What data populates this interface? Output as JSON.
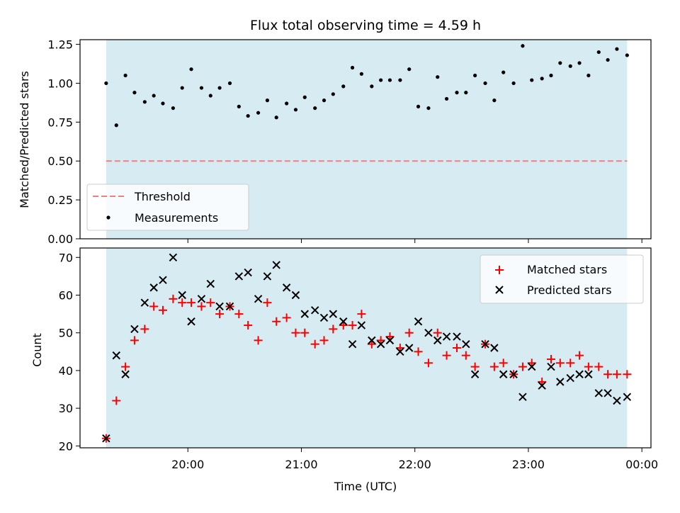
{
  "figure_title": "Flux total observing time = 4.59 h",
  "colors": {
    "shade": "#add8e6",
    "threshold": "#f08080",
    "matched": "#ff0000",
    "predicted": "#000000",
    "measurement": "#000000"
  },
  "chart_data": [
    {
      "type": "scatter",
      "title": "Flux total observing time = 4.59 h",
      "xlabel": "",
      "ylabel": "Matched/Predicted stars",
      "ylim": [
        0,
        1.28
      ],
      "x_range_hours": [
        19.05,
        24.08
      ],
      "yticks": [
        "0.00",
        "0.25",
        "0.50",
        "0.75",
        "1.00",
        "1.25"
      ],
      "grid": false,
      "legend_placement": "lower-left",
      "shaded_span_hours": [
        19.28,
        23.87
      ],
      "threshold": {
        "name": "Threshold",
        "value": 0.5,
        "style": "dashed"
      },
      "series": [
        {
          "name": "Measurements",
          "x": [
            19.28,
            19.37,
            19.45,
            19.53,
            19.62,
            19.7,
            19.78,
            19.87,
            19.95,
            20.03,
            20.12,
            20.2,
            20.28,
            20.37,
            20.45,
            20.53,
            20.62,
            20.7,
            20.78,
            20.87,
            20.95,
            21.03,
            21.12,
            21.2,
            21.28,
            21.37,
            21.45,
            21.53,
            21.62,
            21.7,
            21.78,
            21.87,
            21.95,
            22.03,
            22.12,
            22.2,
            22.28,
            22.37,
            22.45,
            22.53,
            22.62,
            22.7,
            22.78,
            22.87,
            22.95,
            23.03,
            23.12,
            23.2,
            23.28,
            23.37,
            23.45,
            23.53,
            23.62,
            23.7,
            23.78,
            23.87
          ],
          "values": [
            1.0,
            0.73,
            1.05,
            0.94,
            0.88,
            0.92,
            0.87,
            0.84,
            0.97,
            1.09,
            0.97,
            0.92,
            0.97,
            1.0,
            0.85,
            0.79,
            0.81,
            0.89,
            0.78,
            0.87,
            0.83,
            0.91,
            0.84,
            0.89,
            0.93,
            0.98,
            1.1,
            1.06,
            0.98,
            1.02,
            1.02,
            1.02,
            1.09,
            0.85,
            0.84,
            1.04,
            0.9,
            0.94,
            0.94,
            1.05,
            1.0,
            0.89,
            1.07,
            1.0,
            1.24,
            1.02,
            1.03,
            1.05,
            1.13,
            1.11,
            1.13,
            1.05,
            1.2,
            1.15,
            1.22,
            1.18
          ]
        }
      ],
      "legend": [
        "Threshold",
        "Measurements"
      ]
    },
    {
      "type": "scatter",
      "title": "",
      "xlabel": "Time (UTC)",
      "ylabel": "Count",
      "ylim": [
        19.5,
        72.5
      ],
      "x_range_hours": [
        19.05,
        24.08
      ],
      "yticks": [
        "20",
        "30",
        "40",
        "50",
        "60",
        "70"
      ],
      "xticks": [
        "20:00",
        "21:00",
        "22:00",
        "23:00",
        "00:00"
      ],
      "grid": false,
      "legend_placement": "upper-right",
      "shaded_span_hours": [
        19.28,
        23.87
      ],
      "series": [
        {
          "name": "Matched stars",
          "marker": "plus",
          "x": [
            19.28,
            19.37,
            19.45,
            19.53,
            19.62,
            19.7,
            19.78,
            19.87,
            19.95,
            20.03,
            20.12,
            20.2,
            20.28,
            20.37,
            20.45,
            20.53,
            20.62,
            20.7,
            20.78,
            20.87,
            20.95,
            21.03,
            21.12,
            21.2,
            21.28,
            21.37,
            21.45,
            21.53,
            21.62,
            21.7,
            21.78,
            21.87,
            21.95,
            22.03,
            22.12,
            22.2,
            22.28,
            22.37,
            22.45,
            22.53,
            22.62,
            22.7,
            22.78,
            22.87,
            22.95,
            23.03,
            23.12,
            23.2,
            23.28,
            23.37,
            23.45,
            23.53,
            23.62,
            23.7,
            23.78,
            23.87
          ],
          "values": [
            22,
            32,
            41,
            48,
            51,
            57,
            56,
            59,
            58,
            58,
            57,
            58,
            55,
            57,
            55,
            52,
            48,
            58,
            53,
            54,
            50,
            50,
            47,
            48,
            51,
            52,
            52,
            55,
            47,
            48,
            49,
            46,
            50,
            45,
            42,
            50,
            44,
            46,
            44,
            41,
            47,
            41,
            42,
            39,
            41,
            42,
            37,
            43,
            42,
            42,
            44,
            41,
            41,
            39,
            39,
            39
          ]
        },
        {
          "name": "Predicted stars",
          "marker": "x",
          "x": [
            19.28,
            19.37,
            19.45,
            19.53,
            19.62,
            19.7,
            19.78,
            19.87,
            19.95,
            20.03,
            20.12,
            20.2,
            20.28,
            20.37,
            20.45,
            20.53,
            20.62,
            20.7,
            20.78,
            20.87,
            20.95,
            21.03,
            21.12,
            21.2,
            21.28,
            21.37,
            21.45,
            21.53,
            21.62,
            21.7,
            21.78,
            21.87,
            21.95,
            22.03,
            22.12,
            22.2,
            22.28,
            22.37,
            22.45,
            22.53,
            22.62,
            22.7,
            22.78,
            22.87,
            22.95,
            23.03,
            23.12,
            23.2,
            23.28,
            23.37,
            23.45,
            23.53,
            23.62,
            23.7,
            23.78,
            23.87
          ],
          "values": [
            22,
            44,
            39,
            51,
            58,
            62,
            64,
            70,
            60,
            53,
            59,
            63,
            57,
            57,
            65,
            66,
            59,
            65,
            68,
            62,
            60,
            55,
            56,
            54,
            55,
            53,
            47,
            52,
            48,
            47,
            48,
            45,
            46,
            53,
            50,
            48,
            49,
            49,
            47,
            39,
            47,
            46,
            39,
            39,
            33,
            41,
            36,
            41,
            37,
            38,
            39,
            39,
            34,
            34,
            32,
            33
          ]
        }
      ],
      "legend": [
        "Matched stars",
        "Predicted stars"
      ]
    }
  ]
}
